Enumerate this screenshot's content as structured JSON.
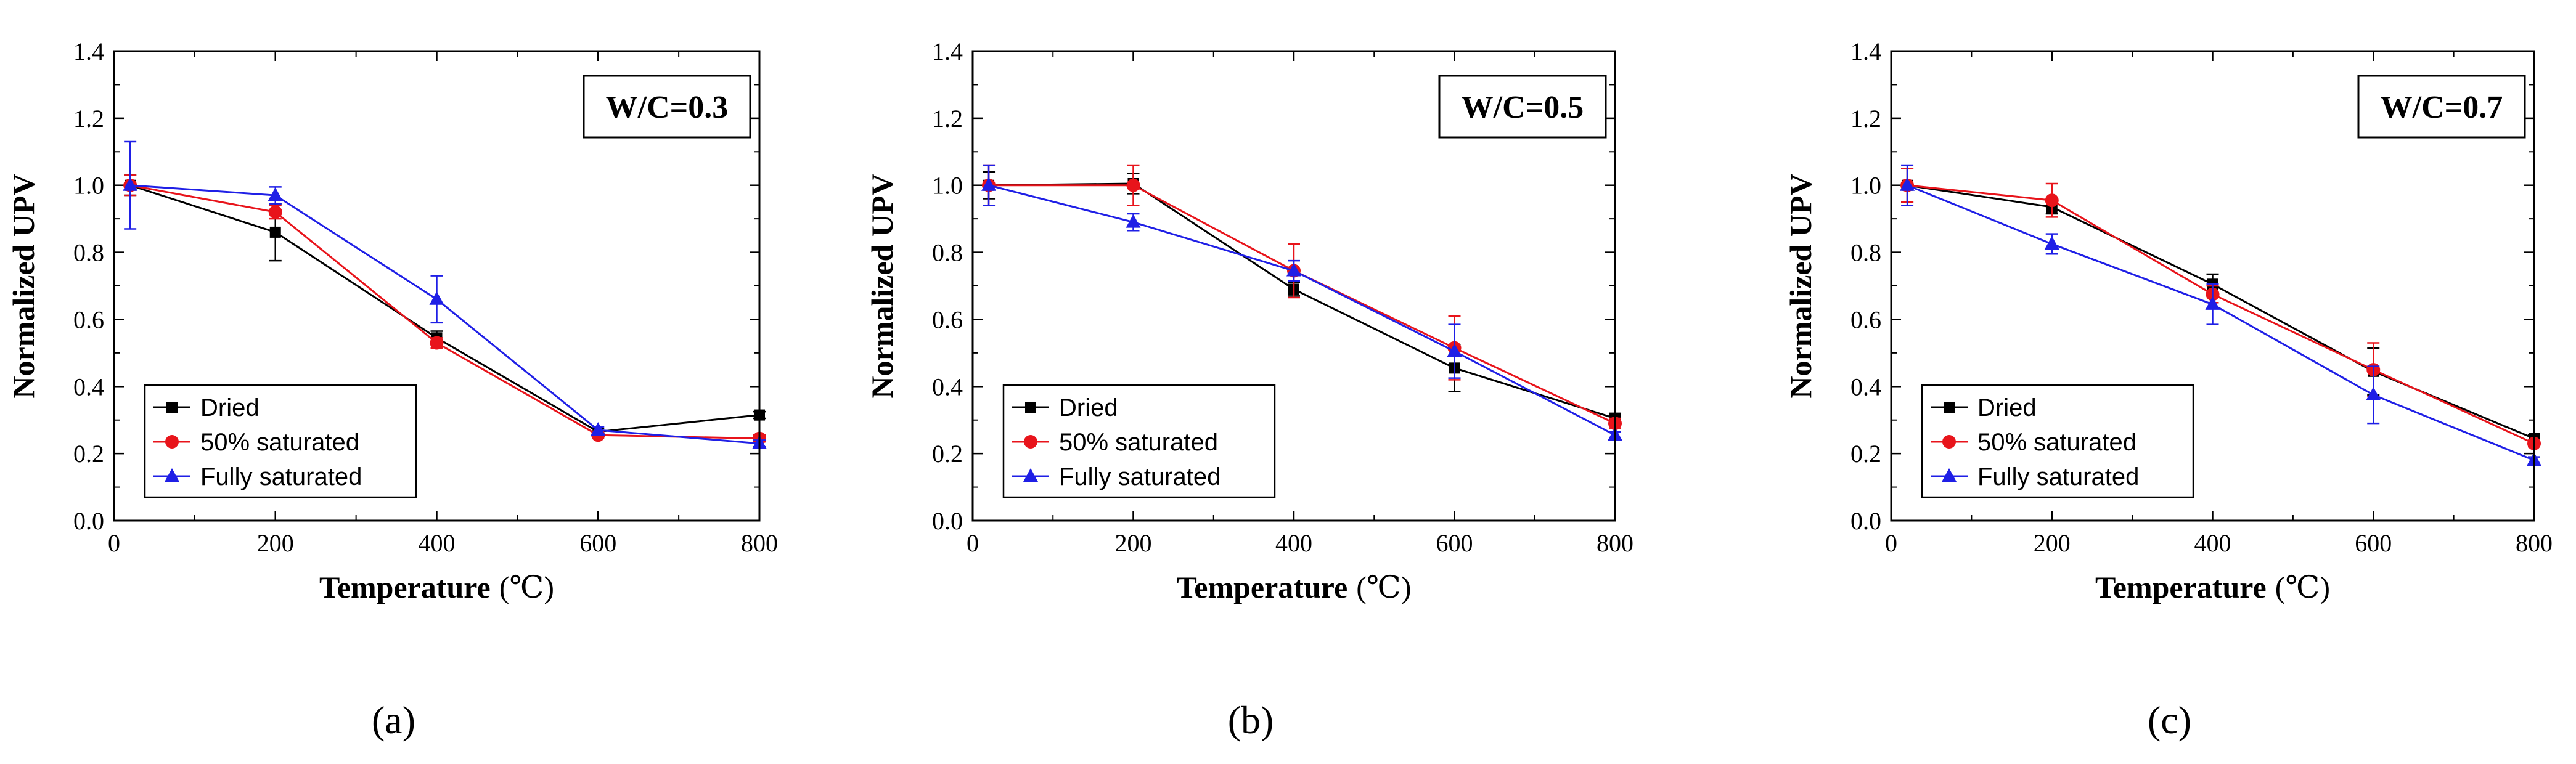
{
  "colors": {
    "Dried": "#000000",
    "50% saturated": "#e8141b",
    "Fully saturated": "#1f1fe6"
  },
  "markers": {
    "Dried": "square",
    "50% saturated": "circle",
    "Fully saturated": "triangle"
  },
  "chart_data": [
    {
      "type": "line",
      "panel_label": "(a)",
      "annotation": "W/C=0.3",
      "xlabel": "Temperature",
      "xlabel_unit": "(℃)",
      "ylabel": "Normalized UPV",
      "xlim": [
        0,
        800
      ],
      "ylim": [
        0,
        1.4
      ],
      "xticks": [
        0,
        200,
        400,
        600,
        800
      ],
      "yticks": [
        0.0,
        0.2,
        0.4,
        0.6,
        0.8,
        1.0,
        1.2,
        1.4
      ],
      "ytick_labels": [
        "0.0",
        "0.2",
        "0.4",
        "0.6",
        "0.8",
        "1.0",
        "1.2",
        "1.4"
      ],
      "legend_position": "bottom-left",
      "x": [
        20,
        200,
        400,
        600,
        800
      ],
      "series": [
        {
          "name": "Dried",
          "values": [
            1.0,
            0.86,
            0.545,
            0.265,
            0.315
          ],
          "errors": [
            0.03,
            0.085,
            0.02,
            0.01,
            0.01
          ]
        },
        {
          "name": "50% saturated",
          "values": [
            1.0,
            0.92,
            0.53,
            0.255,
            0.245
          ],
          "errors": [
            0.03,
            0.02,
            0.015,
            0.01,
            0.01
          ]
        },
        {
          "name": "Fully saturated",
          "values": [
            1.0,
            0.97,
            0.66,
            0.27,
            0.23
          ],
          "errors": [
            0.13,
            0.025,
            0.07,
            0.01,
            0.01
          ]
        }
      ]
    },
    {
      "type": "line",
      "panel_label": "(b)",
      "annotation": "W/C=0.5",
      "xlabel": "Temperature",
      "xlabel_unit": "(℃)",
      "ylabel": "Normalized UPV",
      "xlim": [
        0,
        800
      ],
      "ylim": [
        0,
        1.4
      ],
      "xticks": [
        0,
        200,
        400,
        600,
        800
      ],
      "yticks": [
        0.0,
        0.2,
        0.4,
        0.6,
        0.8,
        1.0,
        1.2,
        1.4
      ],
      "ytick_labels": [
        "0.0",
        "0.2",
        "0.4",
        "0.6",
        "0.8",
        "1.0",
        "1.2",
        "1.4"
      ],
      "legend_position": "bottom-left",
      "x": [
        20,
        200,
        400,
        600,
        800
      ],
      "series": [
        {
          "name": "Dried",
          "values": [
            1.0,
            1.005,
            0.69,
            0.455,
            0.305
          ],
          "errors": [
            0.04,
            0.03,
            0.02,
            0.07,
            0.015
          ]
        },
        {
          "name": "50% saturated",
          "values": [
            1.0,
            1.0,
            0.745,
            0.515,
            0.29
          ],
          "errors": [
            0.06,
            0.06,
            0.08,
            0.095,
            0.015
          ]
        },
        {
          "name": "Fully saturated",
          "values": [
            1.0,
            0.89,
            0.745,
            0.505,
            0.255
          ],
          "errors": [
            0.06,
            0.025,
            0.03,
            0.08,
            0.01
          ]
        }
      ]
    },
    {
      "type": "line",
      "panel_label": "(c)",
      "annotation": "W/C=0.7",
      "xlabel": "Temperature",
      "xlabel_unit": "(℃)",
      "ylabel": "Normalized UPV",
      "xlim": [
        0,
        800
      ],
      "ylim": [
        0,
        1.4
      ],
      "xticks": [
        0,
        200,
        400,
        600,
        800
      ],
      "yticks": [
        0.0,
        0.2,
        0.4,
        0.6,
        0.8,
        1.0,
        1.2,
        1.4
      ],
      "ytick_labels": [
        "0.0",
        "0.2",
        "0.4",
        "0.6",
        "0.8",
        "1.0",
        "1.2",
        "1.4"
      ],
      "legend_position": "bottom-left",
      "x": [
        20,
        200,
        400,
        600,
        800
      ],
      "series": [
        {
          "name": "Dried",
          "values": [
            1.0,
            0.935,
            0.705,
            0.445,
            0.245
          ],
          "errors": [
            0.05,
            0.02,
            0.03,
            0.07,
            0.01
          ]
        },
        {
          "name": "50% saturated",
          "values": [
            1.0,
            0.955,
            0.675,
            0.45,
            0.23
          ],
          "errors": [
            0.05,
            0.05,
            0.025,
            0.08,
            0.01
          ]
        },
        {
          "name": "Fully saturated",
          "values": [
            1.0,
            0.825,
            0.645,
            0.375,
            0.18
          ],
          "errors": [
            0.06,
            0.03,
            0.06,
            0.085,
            0.01
          ]
        }
      ]
    }
  ]
}
